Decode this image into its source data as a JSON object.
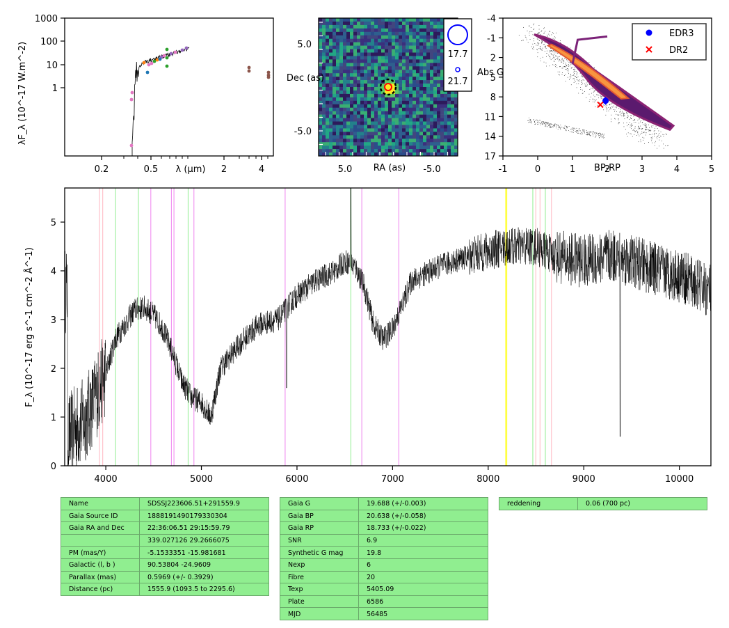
{
  "sed": {
    "ylabel": "λF_λ (10^-17 W.m^-2)",
    "yticks": [
      "1000",
      "100",
      "10",
      "1"
    ],
    "xticks": [
      "0.2",
      "0.5",
      "2",
      "4"
    ],
    "xlabel": "λ (μm)",
    "colors": {
      "blue": "#1f77b4",
      "orange": "#ff7f0e",
      "green": "#2ca02c",
      "pink": "#e377c2",
      "purple": "#9467bd",
      "brown": "#8c564b"
    }
  },
  "image": {
    "xlabel": "RA (as)",
    "ylabel": "Dec (as)",
    "xticks": [
      "5.0",
      "-5.0"
    ],
    "yticks": [
      "5.0",
      "-5.0"
    ],
    "legend": [
      "17.7",
      "21.7"
    ],
    "colormap": "viridis"
  },
  "cmd": {
    "xlabel": "BP-RP",
    "ylabel": "Abs G",
    "xticks": [
      "-1",
      "0",
      "1",
      "2",
      "3",
      "4",
      "5"
    ],
    "yticks": [
      "-4",
      "-1",
      "2",
      "5",
      "8",
      "11",
      "14",
      "17"
    ],
    "legend": [
      {
        "label": "EDR3",
        "marker": "circle",
        "color": "#0000ff"
      },
      {
        "label": "DR2",
        "marker": "x",
        "color": "#ff0000"
      }
    ],
    "points": [
      {
        "name": "EDR3",
        "x": 1.95,
        "y": 8.6
      },
      {
        "name": "DR2",
        "x": 1.8,
        "y": 9.2
      }
    ]
  },
  "chart_data": {
    "type": "line",
    "ylabel": "F_λ (10^-17 erg s^-1 cm^-2 Å^-1)",
    "xlim": [
      3570,
      10330
    ],
    "ylim": [
      0,
      5.7
    ],
    "xticks": [
      4000,
      5000,
      6000,
      7000,
      8000,
      9000,
      10000
    ],
    "yticks": [
      0,
      1,
      2,
      3,
      4,
      5
    ],
    "x": [
      3600,
      3800,
      4000,
      4100,
      4200,
      4300,
      4400,
      4500,
      4600,
      4700,
      4800,
      4900,
      5000,
      5100,
      5200,
      5400,
      5600,
      5800,
      6000,
      6200,
      6400,
      6500,
      6600,
      6700,
      6800,
      6900,
      7000,
      7200,
      7500,
      7800,
      8000,
      8200,
      8500,
      8700,
      9000,
      9300,
      9500,
      9800,
      10000,
      10300
    ],
    "y": [
      0.6,
      1.0,
      1.9,
      2.6,
      2.9,
      3.2,
      3.25,
      3.1,
      2.8,
      2.3,
      1.7,
      1.4,
      1.3,
      1.0,
      2.0,
      2.5,
      2.9,
      3.0,
      3.5,
      3.8,
      4.0,
      4.2,
      4.1,
      3.7,
      2.9,
      2.6,
      2.8,
      3.8,
      4.1,
      4.3,
      4.4,
      4.5,
      4.5,
      4.3,
      4.2,
      4.3,
      4.2,
      4.0,
      3.9,
      3.6
    ],
    "lines": [
      {
        "x": 3934,
        "color": "#ffb6c1"
      },
      {
        "x": 3968,
        "color": "#ffb6c1"
      },
      {
        "x": 4102,
        "color": "#90ee90"
      },
      {
        "x": 4341,
        "color": "#90ee90"
      },
      {
        "x": 4471,
        "color": "#ee82ee"
      },
      {
        "x": 4686,
        "color": "#ee82ee"
      },
      {
        "x": 4713,
        "color": "#ee82ee"
      },
      {
        "x": 4861,
        "color": "#90ee90"
      },
      {
        "x": 4922,
        "color": "#ee82ee"
      },
      {
        "x": 5876,
        "color": "#ee82ee"
      },
      {
        "x": 6563,
        "color": "#90ee90"
      },
      {
        "x": 6678,
        "color": "#ee82ee"
      },
      {
        "x": 7065,
        "color": "#ee82ee"
      },
      {
        "x": 8183,
        "color": "#ffff00"
      },
      {
        "x": 8195,
        "color": "#ffff00"
      },
      {
        "x": 8467,
        "color": "#90ee90"
      },
      {
        "x": 8498,
        "color": "#ffb6c1"
      },
      {
        "x": 8542,
        "color": "#ffb6c1"
      },
      {
        "x": 8598,
        "color": "#90ee90"
      },
      {
        "x": 8662,
        "color": "#ffb6c1"
      }
    ]
  },
  "table1": [
    [
      "Name",
      "SDSSJ223606.51+291559.9"
    ],
    [
      "Gaia Source ID",
      "1888191490179330304"
    ],
    [
      "Gaia RA and Dec",
      "22:36:06.51    29:15:59.79"
    ],
    [
      "",
      "339.027126    29.2666075"
    ],
    [
      "PM (mas/Y)",
      "-5.1533351    -15.981681"
    ],
    [
      "Galactic (l, b )",
      "90.53804    -24.9609"
    ],
    [
      "Parallax (mas)",
      "0.5969 (+/- 0.3929)"
    ],
    [
      "Distance (pc)",
      "1555.9 (1093.5 to 2295.6)"
    ]
  ],
  "table2": [
    [
      "Gaia G",
      "19.688 (+/-0.003)"
    ],
    [
      "Gaia BP",
      "20.638 (+/-0.058)"
    ],
    [
      "Gaia RP",
      "18.733 (+/-0.022)"
    ],
    [
      "SNR",
      "6.9"
    ],
    [
      "Synthetic G mag",
      "19.8"
    ],
    [
      "Nexp",
      "6"
    ],
    [
      "Fibre",
      "20"
    ],
    [
      "Texp",
      "5405.09"
    ],
    [
      "Plate",
      "6586"
    ],
    [
      "MJD",
      "56485"
    ]
  ],
  "table3": [
    [
      "reddening",
      "0.06 (700 pc)"
    ]
  ]
}
